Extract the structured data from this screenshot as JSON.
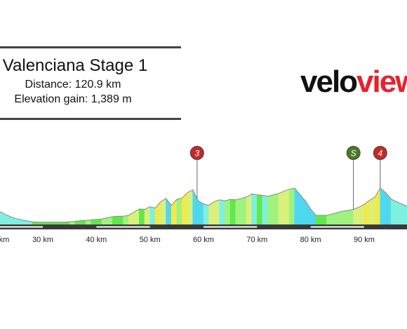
{
  "stage": {
    "title": "Valenciana Stage 1",
    "distance_text": "Distance: 120.9 km",
    "elevation_text": "Elevation gain: 1,389 m"
  },
  "logo": {
    "part1": "velo",
    "part2": "view"
  },
  "chart_data": {
    "type": "area",
    "xlabel": "",
    "ylabel": "",
    "x_tick_labels": [
      "km",
      "30 km",
      "40 km",
      "50 km",
      "60 km",
      "70 km",
      "80 km",
      "90 km"
    ],
    "x_ticks": [
      23,
      30,
      40,
      50,
      60,
      70,
      80,
      90
    ],
    "xlim": [
      22,
      98
    ],
    "ylim": [
      0,
      1
    ],
    "profile": {
      "x": [
        22,
        23,
        24,
        25,
        26,
        27,
        28,
        29,
        30,
        31,
        32,
        33,
        34,
        35,
        36,
        37,
        38,
        39,
        40,
        41,
        42,
        43,
        44,
        45,
        46,
        47,
        48,
        49,
        50,
        51,
        52,
        53,
        54,
        55,
        56,
        57,
        58,
        59,
        60,
        61,
        62,
        63,
        64,
        65,
        66,
        67,
        68,
        69,
        70,
        71,
        72,
        73,
        74,
        75,
        76,
        77,
        78,
        79,
        80,
        81,
        82,
        83,
        84,
        85,
        86,
        87,
        88,
        89,
        90,
        91,
        92,
        93,
        94,
        95,
        96,
        97,
        98
      ],
      "y": [
        0.28,
        0.22,
        0.17,
        0.13,
        0.1,
        0.08,
        0.06,
        0.05,
        0.05,
        0.05,
        0.05,
        0.05,
        0.05,
        0.06,
        0.07,
        0.08,
        0.09,
        0.1,
        0.11,
        0.12,
        0.15,
        0.17,
        0.18,
        0.18,
        0.2,
        0.27,
        0.34,
        0.33,
        0.39,
        0.36,
        0.5,
        0.57,
        0.42,
        0.55,
        0.58,
        0.7,
        0.76,
        0.52,
        0.45,
        0.42,
        0.5,
        0.54,
        0.52,
        0.55,
        0.54,
        0.57,
        0.6,
        0.67,
        0.65,
        0.64,
        0.62,
        0.65,
        0.68,
        0.73,
        0.77,
        0.8,
        0.66,
        0.52,
        0.34,
        0.2,
        0.2,
        0.2,
        0.23,
        0.26,
        0.29,
        0.31,
        0.33,
        0.38,
        0.44,
        0.53,
        0.6,
        0.8,
        0.7,
        0.56,
        0.5,
        0.45,
        0.4
      ]
    },
    "markers": [
      {
        "label": "3",
        "x": 58.8,
        "color": "#c62828"
      },
      {
        "label": "S",
        "x": 88.0,
        "color": "#4a7a23"
      },
      {
        "label": "4",
        "x": 93.0,
        "color": "#c62828"
      }
    ],
    "grid": false
  }
}
